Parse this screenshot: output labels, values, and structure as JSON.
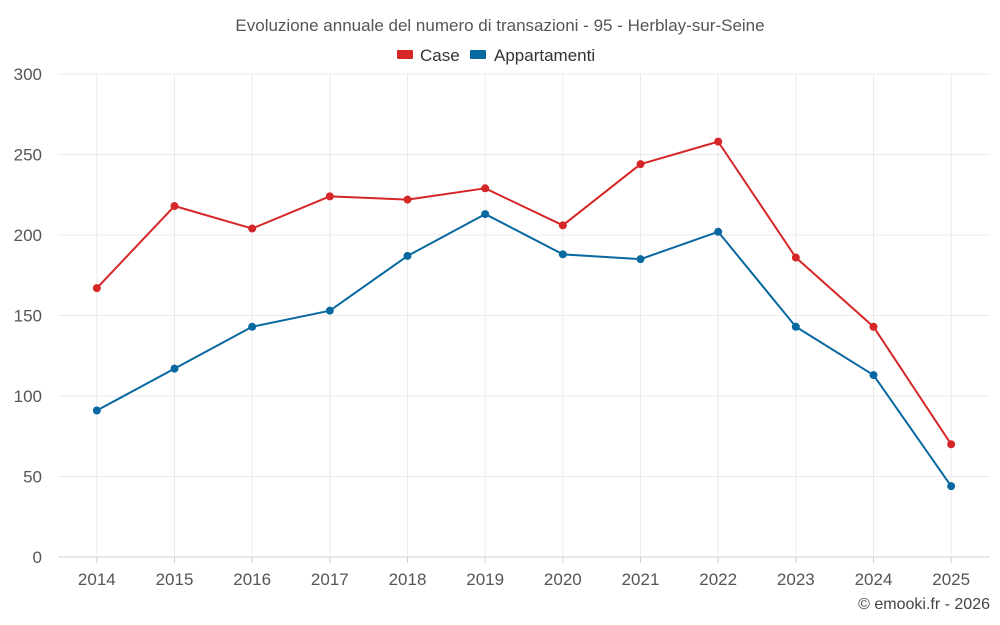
{
  "chart_data": {
    "type": "line",
    "title": "Evoluzione annuale del numero di transazioni - 95 - Herblay-sur-Seine",
    "categories": [
      "2014",
      "2015",
      "2016",
      "2017",
      "2018",
      "2019",
      "2020",
      "2021",
      "2022",
      "2023",
      "2024",
      "2025"
    ],
    "series": [
      {
        "name": "Case",
        "color": "#d62728",
        "values": [
          167,
          218,
          204,
          224,
          222,
          229,
          206,
          244,
          258,
          186,
          143,
          70
        ]
      },
      {
        "name": "Appartamenti",
        "color": "#0868a0",
        "values": [
          91,
          117,
          143,
          153,
          187,
          213,
          188,
          185,
          202,
          143,
          113,
          44
        ]
      }
    ],
    "ylim": [
      0,
      300
    ],
    "yticks": [
      0,
      50,
      100,
      150,
      200,
      250,
      300
    ],
    "xlabel": "",
    "ylabel": "",
    "legend": "top-center",
    "grid": true
  },
  "credit": "© emooki.fr - 2026"
}
